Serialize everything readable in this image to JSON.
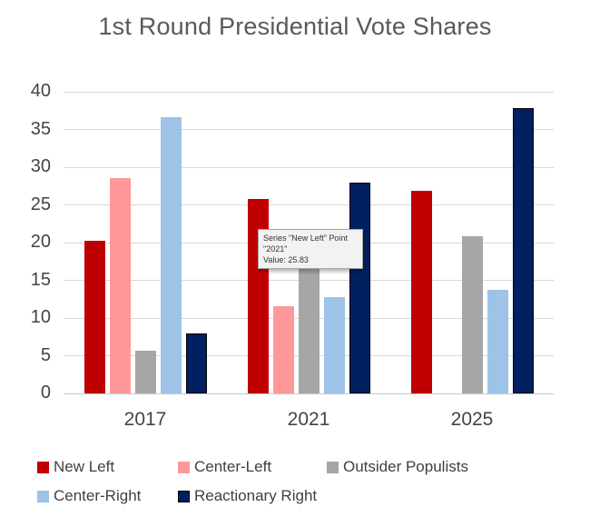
{
  "chart_data": {
    "type": "bar",
    "title": "1st Round Presidential Vote Shares",
    "xlabel": "",
    "ylabel": "",
    "categories": [
      "2017",
      "2021",
      "2025"
    ],
    "series": [
      {
        "name": "New Left",
        "color": "#c00000",
        "values": [
          20.27,
          25.83,
          26.85
        ]
      },
      {
        "name": "Center-Left",
        "color": "#ff9999",
        "values": [
          28.58,
          11.61,
          null
        ]
      },
      {
        "name": "Outsider Populists",
        "color": "#a6a6a6",
        "values": [
          5.71,
          20.41,
          20.89
        ]
      },
      {
        "name": "Center-Right",
        "color": "#9dc3e6",
        "values": [
          36.64,
          12.79,
          13.73
        ]
      },
      {
        "name": "Reactionary Right",
        "color": "#002060",
        "border": "#000000",
        "values": [
          7.93,
          27.91,
          37.86
        ]
      }
    ],
    "ylim": [
      0,
      40
    ],
    "ytick_step": 5,
    "grid": true,
    "legend_position": "bottom",
    "tooltip": {
      "line1": "Series \"New Left\" Point \"2021\"",
      "line2": "Value: 25.83"
    }
  },
  "colors": {
    "gridline": "#d9d9d9",
    "title_text": "#595959",
    "axis_text": "#444444",
    "legend_text": "#404040",
    "tooltip_bg": "#f2f2f2"
  }
}
